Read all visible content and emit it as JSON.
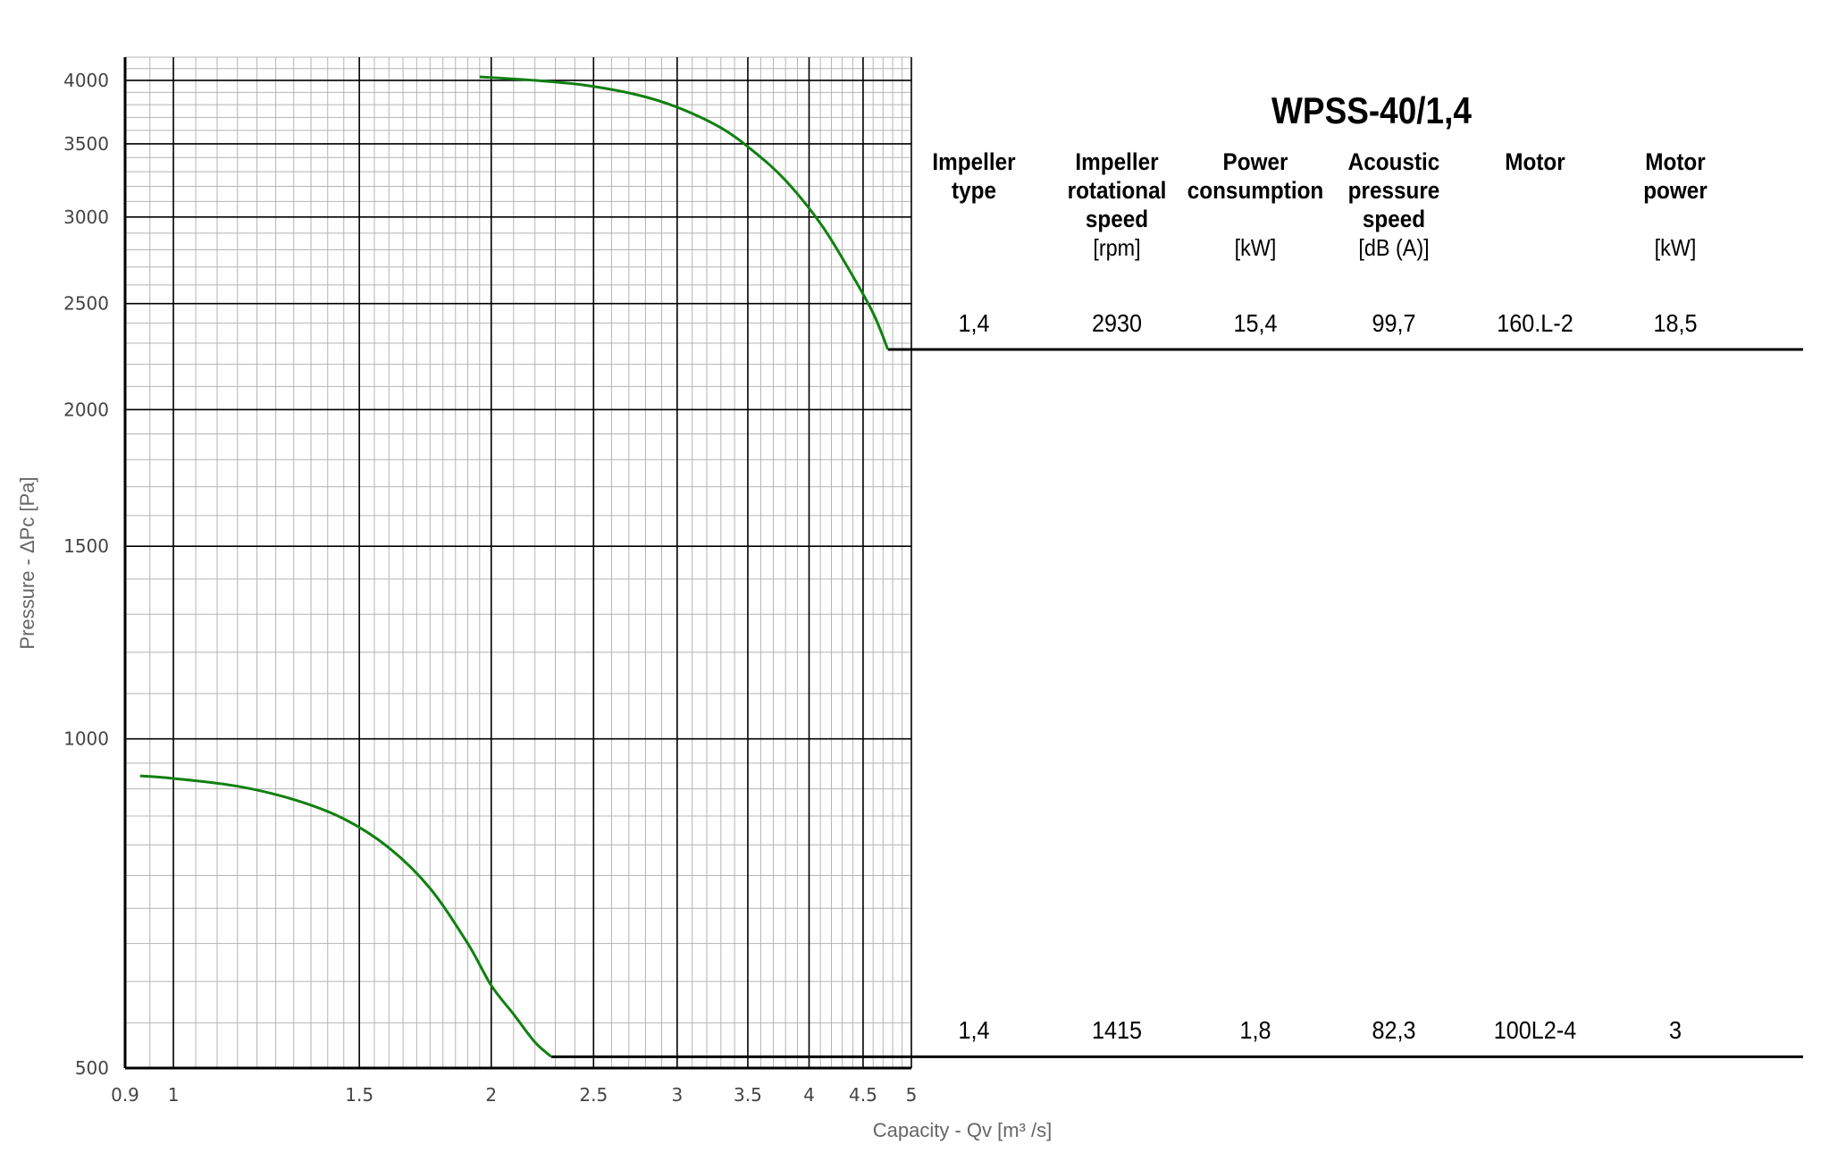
{
  "chart_data": {
    "type": "line",
    "title": "WPSS-40/1,4",
    "xlabel": "Capacity - Qv [m³ /s]",
    "ylabel": "Pressure - ΔPc [Pa]",
    "x_scale": "log",
    "y_scale": "log",
    "xlim": [
      0.9,
      5
    ],
    "ylim": [
      500,
      4200
    ],
    "x_ticks": [
      0.9,
      1,
      1.5,
      2,
      2.5,
      3,
      3.5,
      4,
      4.5,
      5
    ],
    "x_tick_labels": [
      "0.9",
      "1",
      "1.5",
      "2",
      "2.5",
      "3",
      "3.5",
      "4",
      "4.5",
      "5"
    ],
    "y_ticks": [
      500,
      1000,
      1500,
      2000,
      2500,
      3000,
      3500,
      4000
    ],
    "y_tick_labels": [
      "500",
      "1000",
      "1500",
      "2000",
      "2500",
      "3000",
      "3500",
      "4000"
    ],
    "grid": true,
    "line_color": "#118011",
    "series": [
      {
        "row": 0,
        "x": [
          1.95,
          2.2,
          2.45,
          2.75,
          3.0,
          3.3,
          3.55,
          3.8,
          4.1,
          4.35,
          4.6,
          4.75
        ],
        "y": [
          4030,
          4000,
          3960,
          3880,
          3780,
          3620,
          3440,
          3240,
          2960,
          2700,
          2450,
          2270
        ]
      },
      {
        "row": 1,
        "x": [
          0.93,
          1.0,
          1.15,
          1.3,
          1.45,
          1.6,
          1.75,
          1.9,
          2.0,
          2.1,
          2.2,
          2.28
        ],
        "y": [
          925,
          920,
          905,
          880,
          845,
          795,
          730,
          650,
          595,
          560,
          528,
          512
        ]
      }
    ]
  },
  "table": {
    "title": "WPSS-40/1,4",
    "columns": [
      {
        "header": [
          "Impeller",
          "type"
        ],
        "unit": ""
      },
      {
        "header": [
          "Impeller",
          "rotational",
          "speed"
        ],
        "unit": "[rpm]"
      },
      {
        "header": [
          "Power",
          "consumption"
        ],
        "unit": "[kW]"
      },
      {
        "header": [
          "Acoustic",
          "pressure",
          "speed"
        ],
        "unit": "[dB (A)]"
      },
      {
        "header": [
          "Motor"
        ],
        "unit": ""
      },
      {
        "header": [
          "Motor",
          "power"
        ],
        "unit": "[kW]"
      }
    ],
    "rows": [
      [
        "1,4",
        "2930",
        "15,4",
        "99,7",
        "160.L-2",
        "18,5"
      ],
      [
        "1,4",
        "1415",
        "1,8",
        "82,3",
        "100L2-4",
        "3"
      ]
    ]
  }
}
